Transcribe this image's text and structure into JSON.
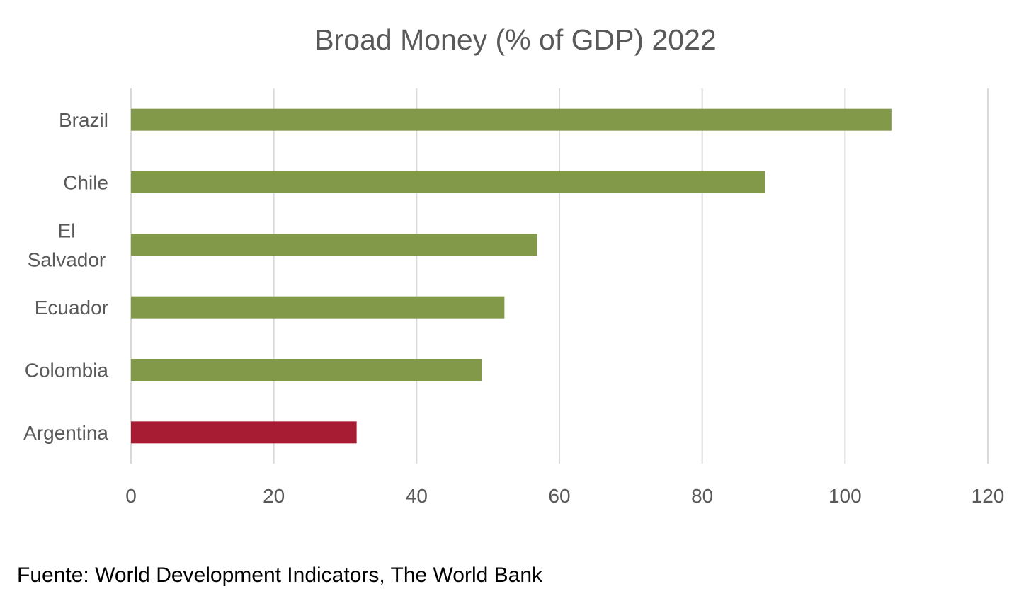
{
  "chart_data": {
    "type": "bar",
    "orientation": "horizontal",
    "title": "Broad Money (% of GDP) 2022",
    "categories": [
      "Brazil",
      "Chile",
      "El Salvador",
      "Ecuador",
      "Colombia",
      "Argentina"
    ],
    "category_label_lines": [
      [
        "Brazil"
      ],
      [
        "Chile"
      ],
      [
        "El",
        "Salvador"
      ],
      [
        "Ecuador"
      ],
      [
        "Colombia"
      ],
      [
        "Argentina"
      ]
    ],
    "values": [
      106.5,
      88.8,
      56.9,
      52.3,
      49.1,
      31.6
    ],
    "bar_colors": [
      "#82994a",
      "#82994a",
      "#82994a",
      "#82994a",
      "#82994a",
      "#a81c33"
    ],
    "xlim": [
      0,
      120
    ],
    "xticks": [
      0,
      20,
      40,
      60,
      80,
      100,
      120
    ],
    "xtick_labels": [
      "0",
      "20",
      "40",
      "60",
      "80",
      "100",
      "120"
    ],
    "xlabel": "",
    "ylabel": "",
    "grid": "vertical",
    "legend": "none"
  },
  "colors": {
    "default_bar": "#82994a",
    "highlight_bar": "#a81c33",
    "gridline": "#d9d9d9",
    "text": "#595959"
  },
  "source": "Fuente: World Development Indicators, The World Bank"
}
